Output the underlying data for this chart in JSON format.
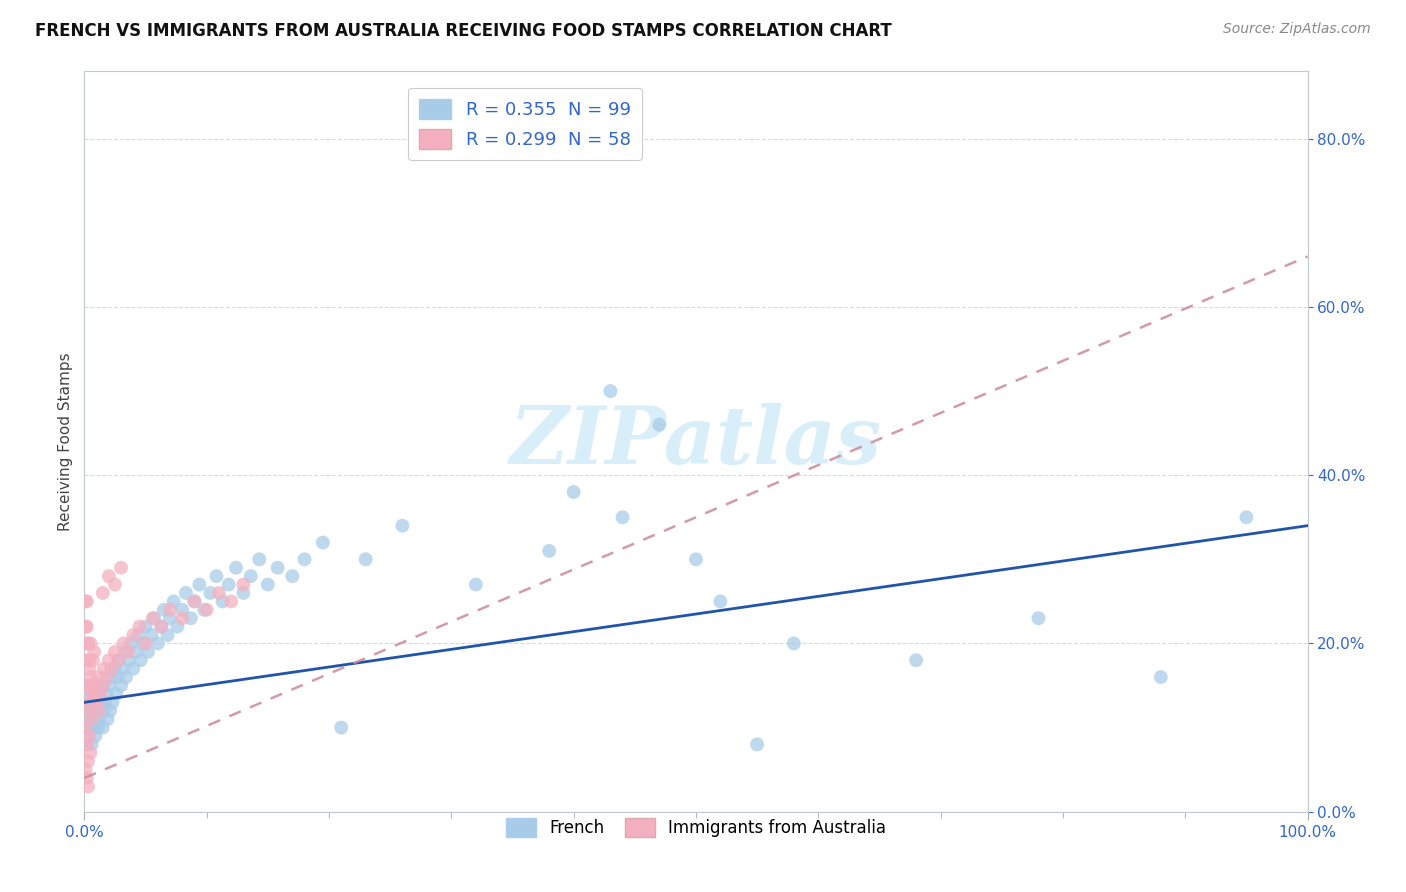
{
  "title": "FRENCH VS IMMIGRANTS FROM AUSTRALIA RECEIVING FOOD STAMPS CORRELATION CHART",
  "source": "Source: ZipAtlas.com",
  "ylabel": "Receiving Food Stamps",
  "legend1_label": "R = 0.355  N = 99",
  "legend2_label": "R = 0.299  N = 58",
  "blue_color": "#a8cce8",
  "pink_color": "#f4b0c0",
  "blue_line_color": "#2255aa",
  "pink_line_color": "#cc8899",
  "watermark_color": "#d8eef8",
  "french_x": [
    0.001,
    0.001,
    0.002,
    0.002,
    0.003,
    0.003,
    0.004,
    0.004,
    0.005,
    0.005,
    0.006,
    0.006,
    0.006,
    0.007,
    0.007,
    0.008,
    0.008,
    0.009,
    0.009,
    0.01,
    0.01,
    0.011,
    0.011,
    0.012,
    0.012,
    0.013,
    0.014,
    0.015,
    0.015,
    0.016,
    0.017,
    0.018,
    0.019,
    0.02,
    0.021,
    0.022,
    0.023,
    0.025,
    0.026,
    0.027,
    0.028,
    0.03,
    0.031,
    0.033,
    0.034,
    0.036,
    0.038,
    0.04,
    0.042,
    0.044,
    0.046,
    0.048,
    0.05,
    0.052,
    0.055,
    0.057,
    0.06,
    0.063,
    0.065,
    0.068,
    0.07,
    0.073,
    0.076,
    0.08,
    0.083,
    0.087,
    0.09,
    0.094,
    0.098,
    0.103,
    0.108,
    0.113,
    0.118,
    0.124,
    0.13,
    0.136,
    0.143,
    0.15,
    0.158,
    0.17,
    0.18,
    0.195,
    0.21,
    0.23,
    0.26,
    0.32,
    0.38,
    0.44,
    0.5,
    0.55,
    0.43,
    0.47,
    0.52,
    0.58,
    0.68,
    0.78,
    0.88,
    0.95,
    0.4
  ],
  "french_y": [
    0.12,
    0.08,
    0.15,
    0.1,
    0.11,
    0.09,
    0.13,
    0.12,
    0.14,
    0.1,
    0.11,
    0.15,
    0.08,
    0.12,
    0.13,
    0.1,
    0.14,
    0.09,
    0.11,
    0.12,
    0.13,
    0.1,
    0.15,
    0.11,
    0.14,
    0.12,
    0.13,
    0.1,
    0.15,
    0.12,
    0.13,
    0.14,
    0.11,
    0.15,
    0.12,
    0.16,
    0.13,
    0.17,
    0.14,
    0.16,
    0.18,
    0.15,
    0.17,
    0.19,
    0.16,
    0.18,
    0.2,
    0.17,
    0.19,
    0.21,
    0.18,
    0.2,
    0.22,
    0.19,
    0.21,
    0.23,
    0.2,
    0.22,
    0.24,
    0.21,
    0.23,
    0.25,
    0.22,
    0.24,
    0.26,
    0.23,
    0.25,
    0.27,
    0.24,
    0.26,
    0.28,
    0.25,
    0.27,
    0.29,
    0.26,
    0.28,
    0.3,
    0.27,
    0.29,
    0.28,
    0.3,
    0.32,
    0.1,
    0.3,
    0.34,
    0.27,
    0.31,
    0.35,
    0.3,
    0.08,
    0.5,
    0.46,
    0.25,
    0.2,
    0.18,
    0.23,
    0.16,
    0.35,
    0.38
  ],
  "aus_x": [
    0.001,
    0.001,
    0.002,
    0.002,
    0.003,
    0.003,
    0.004,
    0.004,
    0.005,
    0.005,
    0.006,
    0.006,
    0.007,
    0.007,
    0.008,
    0.009,
    0.01,
    0.011,
    0.012,
    0.013,
    0.015,
    0.016,
    0.018,
    0.02,
    0.022,
    0.025,
    0.028,
    0.032,
    0.036,
    0.04,
    0.045,
    0.05,
    0.056,
    0.063,
    0.07,
    0.08,
    0.09,
    0.1,
    0.11,
    0.12,
    0.13,
    0.015,
    0.02,
    0.025,
    0.03,
    0.001,
    0.002,
    0.003,
    0.004,
    0.005,
    0.001,
    0.002,
    0.003,
    0.001,
    0.002,
    0.003,
    0.004,
    0.005
  ],
  "aus_y": [
    0.22,
    0.18,
    0.25,
    0.2,
    0.15,
    0.12,
    0.17,
    0.13,
    0.2,
    0.16,
    0.14,
    0.11,
    0.18,
    0.14,
    0.19,
    0.15,
    0.13,
    0.16,
    0.12,
    0.14,
    0.15,
    0.17,
    0.16,
    0.18,
    0.17,
    0.19,
    0.18,
    0.2,
    0.19,
    0.21,
    0.22,
    0.2,
    0.23,
    0.22,
    0.24,
    0.23,
    0.25,
    0.24,
    0.26,
    0.25,
    0.27,
    0.26,
    0.28,
    0.27,
    0.29,
    0.1,
    0.08,
    0.06,
    0.09,
    0.07,
    0.05,
    0.04,
    0.03,
    0.25,
    0.22,
    0.2,
    0.18,
    0.15
  ],
  "xmin": 0.0,
  "xmax": 1.0,
  "ymin": 0.0,
  "ymax": 0.88,
  "ytick_vals": [
    0.0,
    0.2,
    0.4,
    0.6,
    0.8
  ],
  "xtick_vals": [
    0.0,
    0.1,
    0.2,
    0.3,
    0.4,
    0.5,
    0.6,
    0.7,
    0.8,
    0.9,
    1.0
  ]
}
